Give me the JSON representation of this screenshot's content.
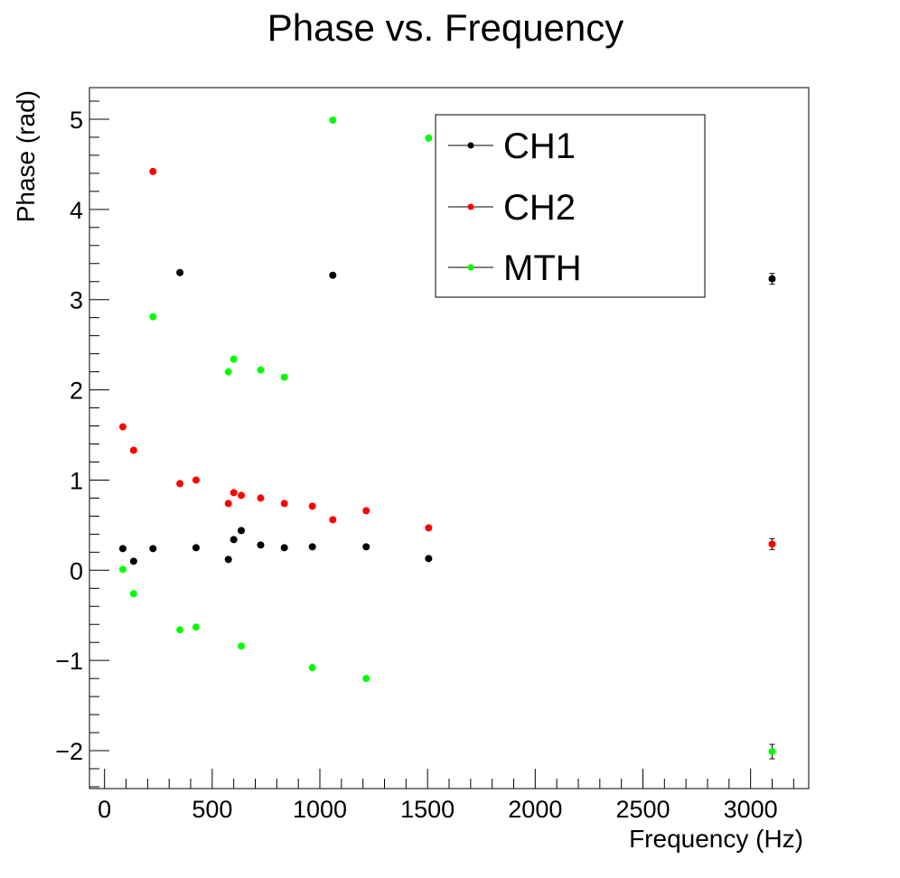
{
  "chart_data": {
    "type": "scatter",
    "title": "Phase vs. Frequency",
    "xlabel": "Frequency (Hz)",
    "ylabel": "Phase (rad)",
    "xlim": [
      -70,
      3270
    ],
    "ylim": [
      -2.42,
      5.35
    ],
    "xticks": [
      0,
      500,
      1000,
      1500,
      2000,
      2500,
      3000
    ],
    "xtick_labels": [
      "0",
      "500",
      "1000",
      "1500",
      "2000",
      "2500",
      "3000"
    ],
    "yticks": [
      -2,
      -1,
      0,
      1,
      2,
      3,
      4,
      5
    ],
    "ytick_labels": [
      "−2",
      "−1",
      "0",
      "1",
      "2",
      "3",
      "4",
      "5"
    ],
    "grid": false,
    "legend_position": "top-right",
    "series": [
      {
        "name": "CH1",
        "color": "#000000",
        "points": [
          {
            "x": 85,
            "y": 0.24
          },
          {
            "x": 135,
            "y": 0.1
          },
          {
            "x": 225,
            "y": 0.24
          },
          {
            "x": 350,
            "y": 3.3
          },
          {
            "x": 425,
            "y": 0.25
          },
          {
            "x": 575,
            "y": 0.12
          },
          {
            "x": 600,
            "y": 0.34
          },
          {
            "x": 635,
            "y": 0.44
          },
          {
            "x": 725,
            "y": 0.28
          },
          {
            "x": 835,
            "y": 0.25
          },
          {
            "x": 965,
            "y": 0.26
          },
          {
            "x": 1060,
            "y": 3.27
          },
          {
            "x": 1215,
            "y": 0.26
          },
          {
            "x": 1505,
            "y": 0.13
          },
          {
            "x": 3100,
            "y": 3.23,
            "err": 0.04
          }
        ]
      },
      {
        "name": "CH2",
        "color": "#ff0000",
        "points": [
          {
            "x": 85,
            "y": 1.59
          },
          {
            "x": 135,
            "y": 1.33
          },
          {
            "x": 225,
            "y": 4.42
          },
          {
            "x": 350,
            "y": 0.96
          },
          {
            "x": 425,
            "y": 1.0
          },
          {
            "x": 575,
            "y": 0.74
          },
          {
            "x": 600,
            "y": 0.86
          },
          {
            "x": 635,
            "y": 0.83
          },
          {
            "x": 725,
            "y": 0.8
          },
          {
            "x": 835,
            "y": 0.74
          },
          {
            "x": 965,
            "y": 0.71
          },
          {
            "x": 1060,
            "y": 0.56
          },
          {
            "x": 1215,
            "y": 0.66
          },
          {
            "x": 1505,
            "y": 0.47
          },
          {
            "x": 3100,
            "y": 0.29,
            "err": 0.04
          }
        ]
      },
      {
        "name": "MTH",
        "color": "#00ff00",
        "points": [
          {
            "x": 85,
            "y": 0.01
          },
          {
            "x": 135,
            "y": -0.26
          },
          {
            "x": 225,
            "y": 2.81
          },
          {
            "x": 350,
            "y": -0.66
          },
          {
            "x": 425,
            "y": -0.63
          },
          {
            "x": 575,
            "y": 2.2
          },
          {
            "x": 600,
            "y": 2.34
          },
          {
            "x": 635,
            "y": -0.84
          },
          {
            "x": 725,
            "y": 2.22
          },
          {
            "x": 835,
            "y": 2.14
          },
          {
            "x": 965,
            "y": -1.08
          },
          {
            "x": 1060,
            "y": 4.99
          },
          {
            "x": 1215,
            "y": -1.2
          },
          {
            "x": 1505,
            "y": 4.79
          },
          {
            "x": 3100,
            "y": -2.01,
            "err": 0.06
          }
        ]
      }
    ]
  }
}
